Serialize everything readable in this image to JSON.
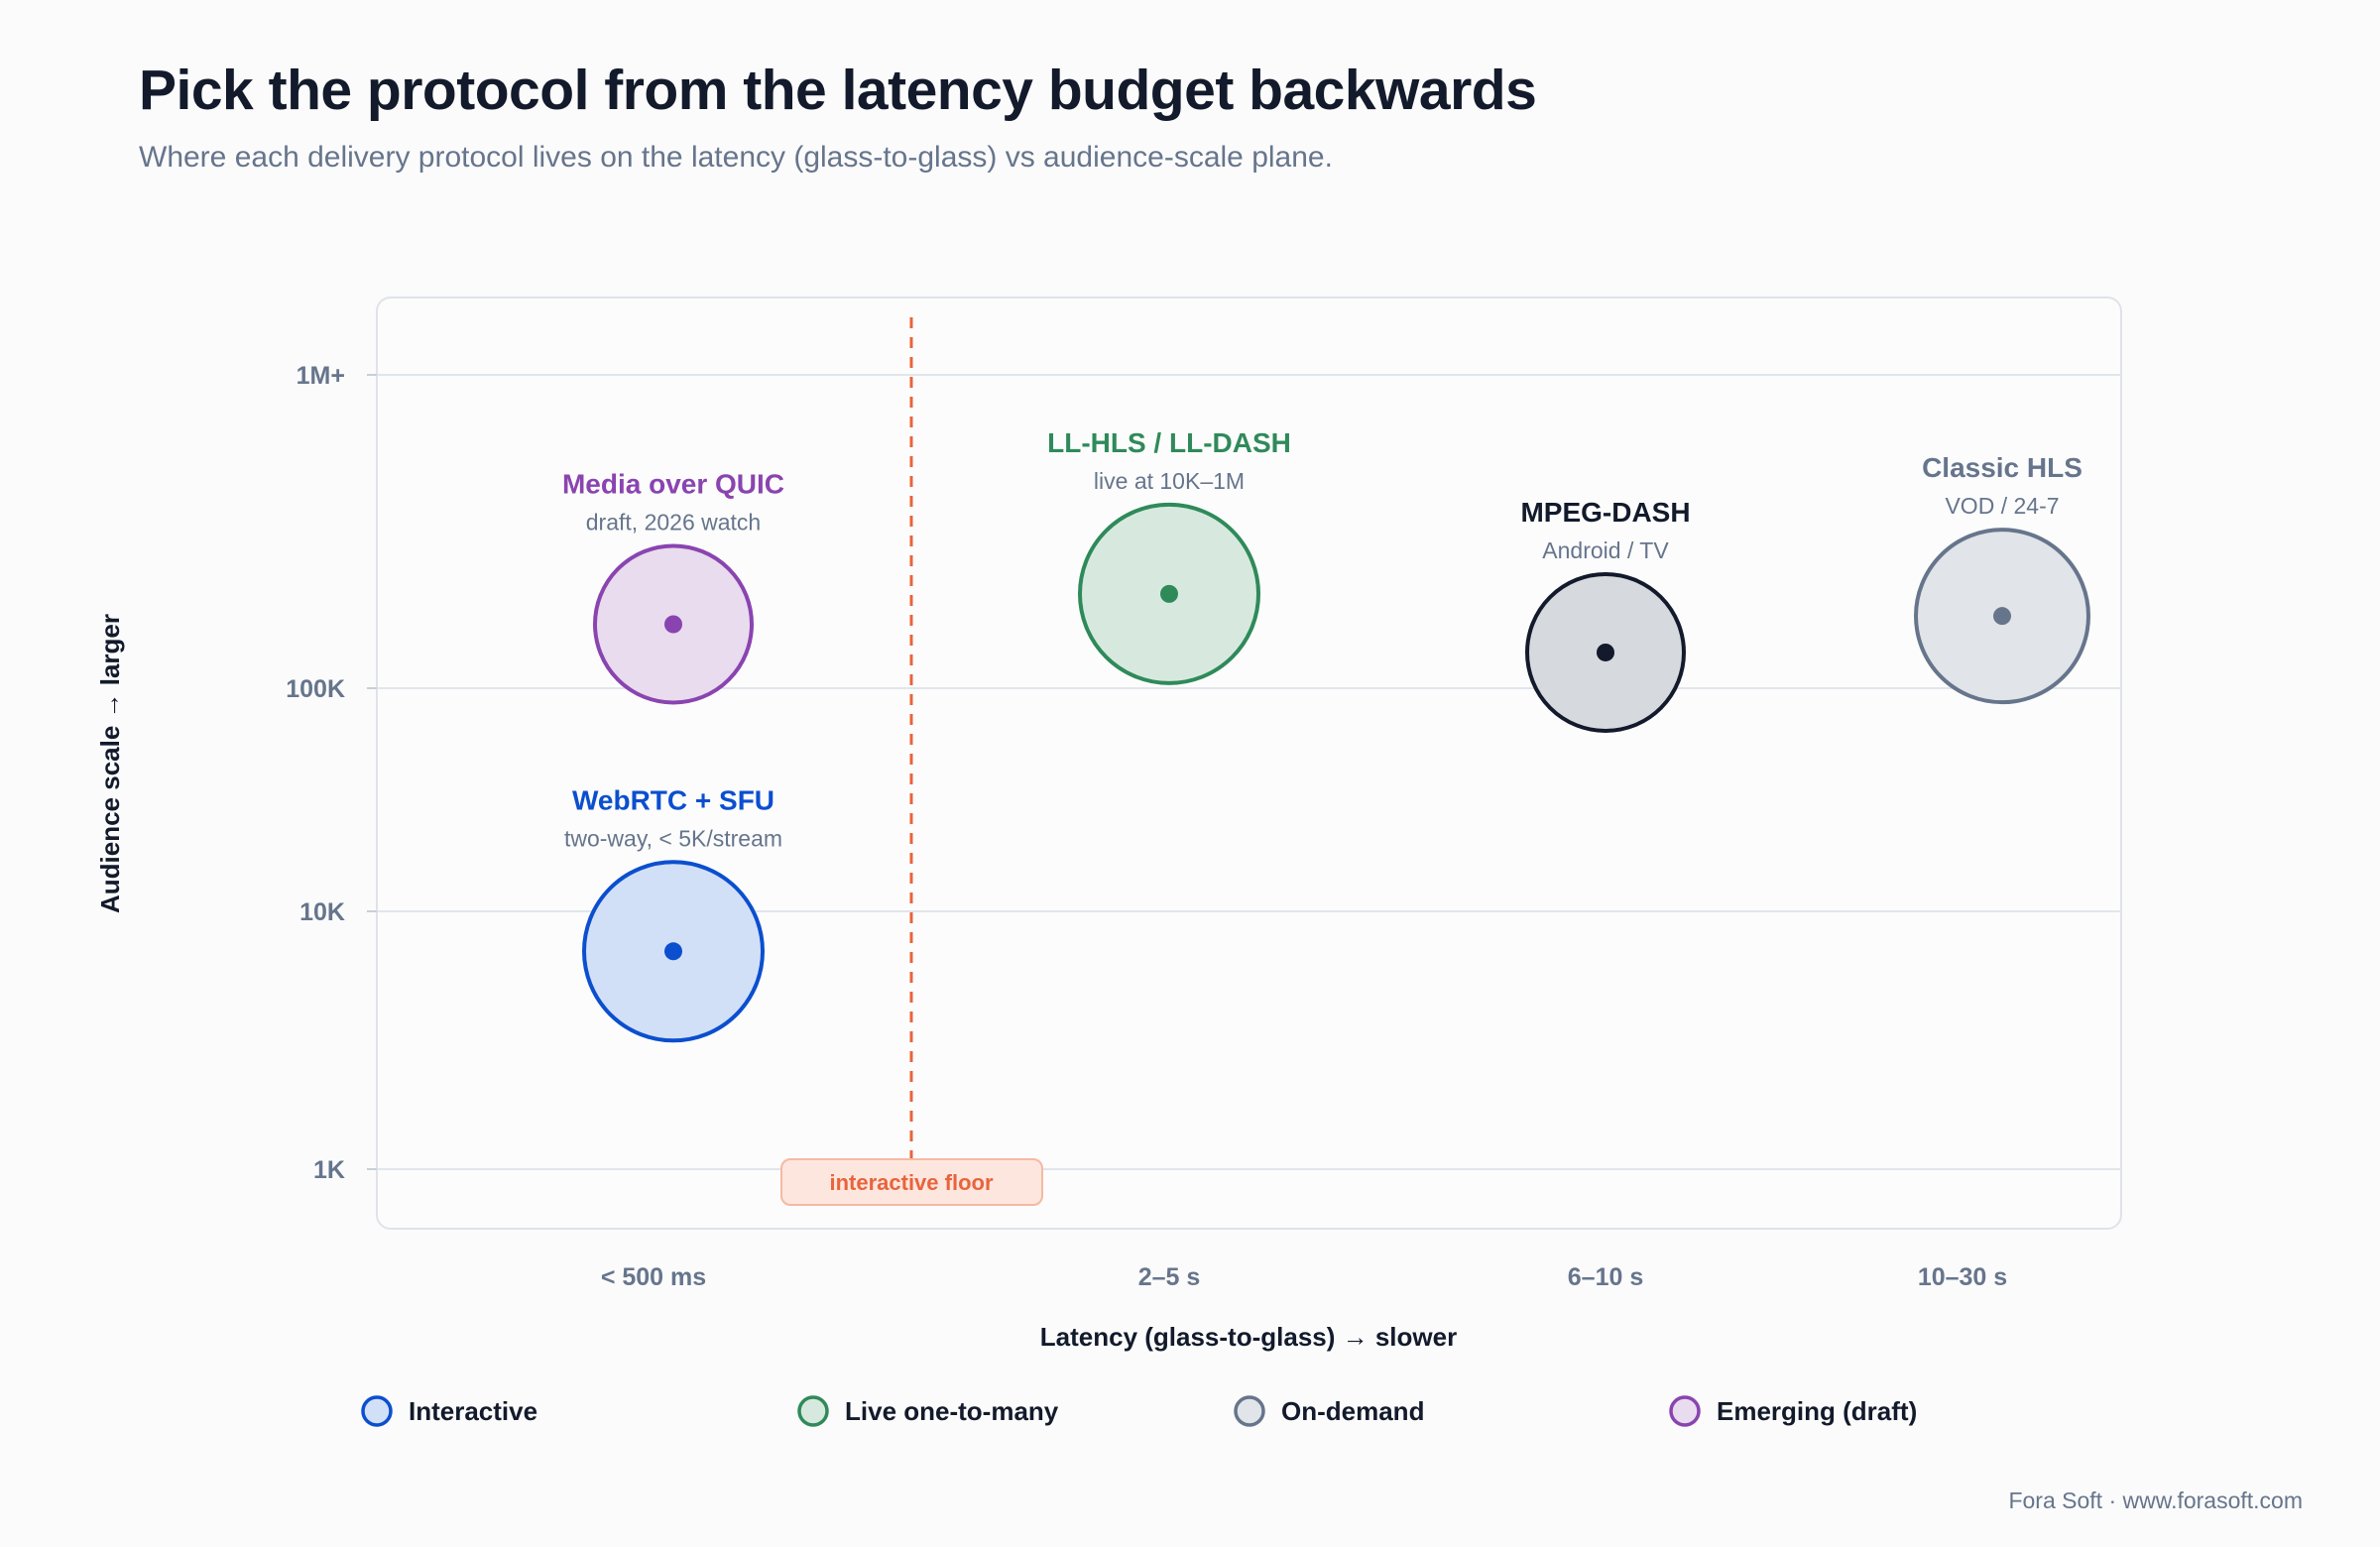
{
  "header": {
    "title": "Pick the protocol from the latency budget backwards",
    "subtitle": "Where each delivery protocol lives on the latency (glass-to-glass) vs audience-scale plane."
  },
  "footer": "Fora Soft · www.forasoft.com",
  "chart_data": {
    "type": "scatter",
    "xlabel": "Latency (glass-to-glass) → slower",
    "ylabel": "Audience scale → larger",
    "x_scale": "categorical",
    "x_ticks": [
      "< 500 ms",
      "2–5 s",
      "6–10 s",
      "10–30 s"
    ],
    "y_scale": "log",
    "y_ticks": [
      "1K",
      "10K",
      "100K",
      "1M+"
    ],
    "ylim": [
      1000,
      1000000
    ],
    "grid": true,
    "threshold": {
      "label": "interactive floor",
      "color": "#e8643c"
    },
    "categories": [
      {
        "name": "Interactive",
        "color": "#0b4fcf",
        "fill": "#d2e0f7"
      },
      {
        "name": "Live one-to-many",
        "color": "#2f8a5a",
        "fill": "#d7e9df"
      },
      {
        "name": "On-demand",
        "color": "#66758c",
        "fill": "#e1e4e8"
      },
      {
        "name": "Emerging (draft)",
        "color": "#8a44b0",
        "fill": "#e8dcee"
      }
    ],
    "legend_position": "bottom",
    "points": [
      {
        "label": "WebRTC + SFU",
        "sublabel": "two-way, < 5K/stream",
        "x": "< 500 ms",
        "y": 7000,
        "category": "Interactive",
        "color": "#0b4fcf",
        "fill": "#d2e0f7"
      },
      {
        "label": "Media over QUIC",
        "sublabel": "draft, 2026 watch",
        "x": "< 500 ms",
        "y": 160000,
        "category": "Emerging (draft)",
        "color": "#8a44b0",
        "fill": "#e8dcee"
      },
      {
        "label": "LL-HLS / LL-DASH",
        "sublabel": "live at 10K–1M",
        "x": "2–5 s",
        "y": 200000,
        "category": "Live one-to-many",
        "color": "#2f8a5a",
        "fill": "#d7e9df"
      },
      {
        "label": "MPEG-DASH",
        "sublabel": "Android / TV",
        "x": "6–10 s",
        "y": 130000,
        "category": "On-demand",
        "color": "#121a2b",
        "fill": "#d6d9dd"
      },
      {
        "label": "Classic HLS",
        "sublabel": "VOD / 24-7",
        "x": "10–30 s",
        "y": 170000,
        "category": "On-demand",
        "color": "#66758c",
        "fill": "#e1e4e8"
      }
    ]
  }
}
